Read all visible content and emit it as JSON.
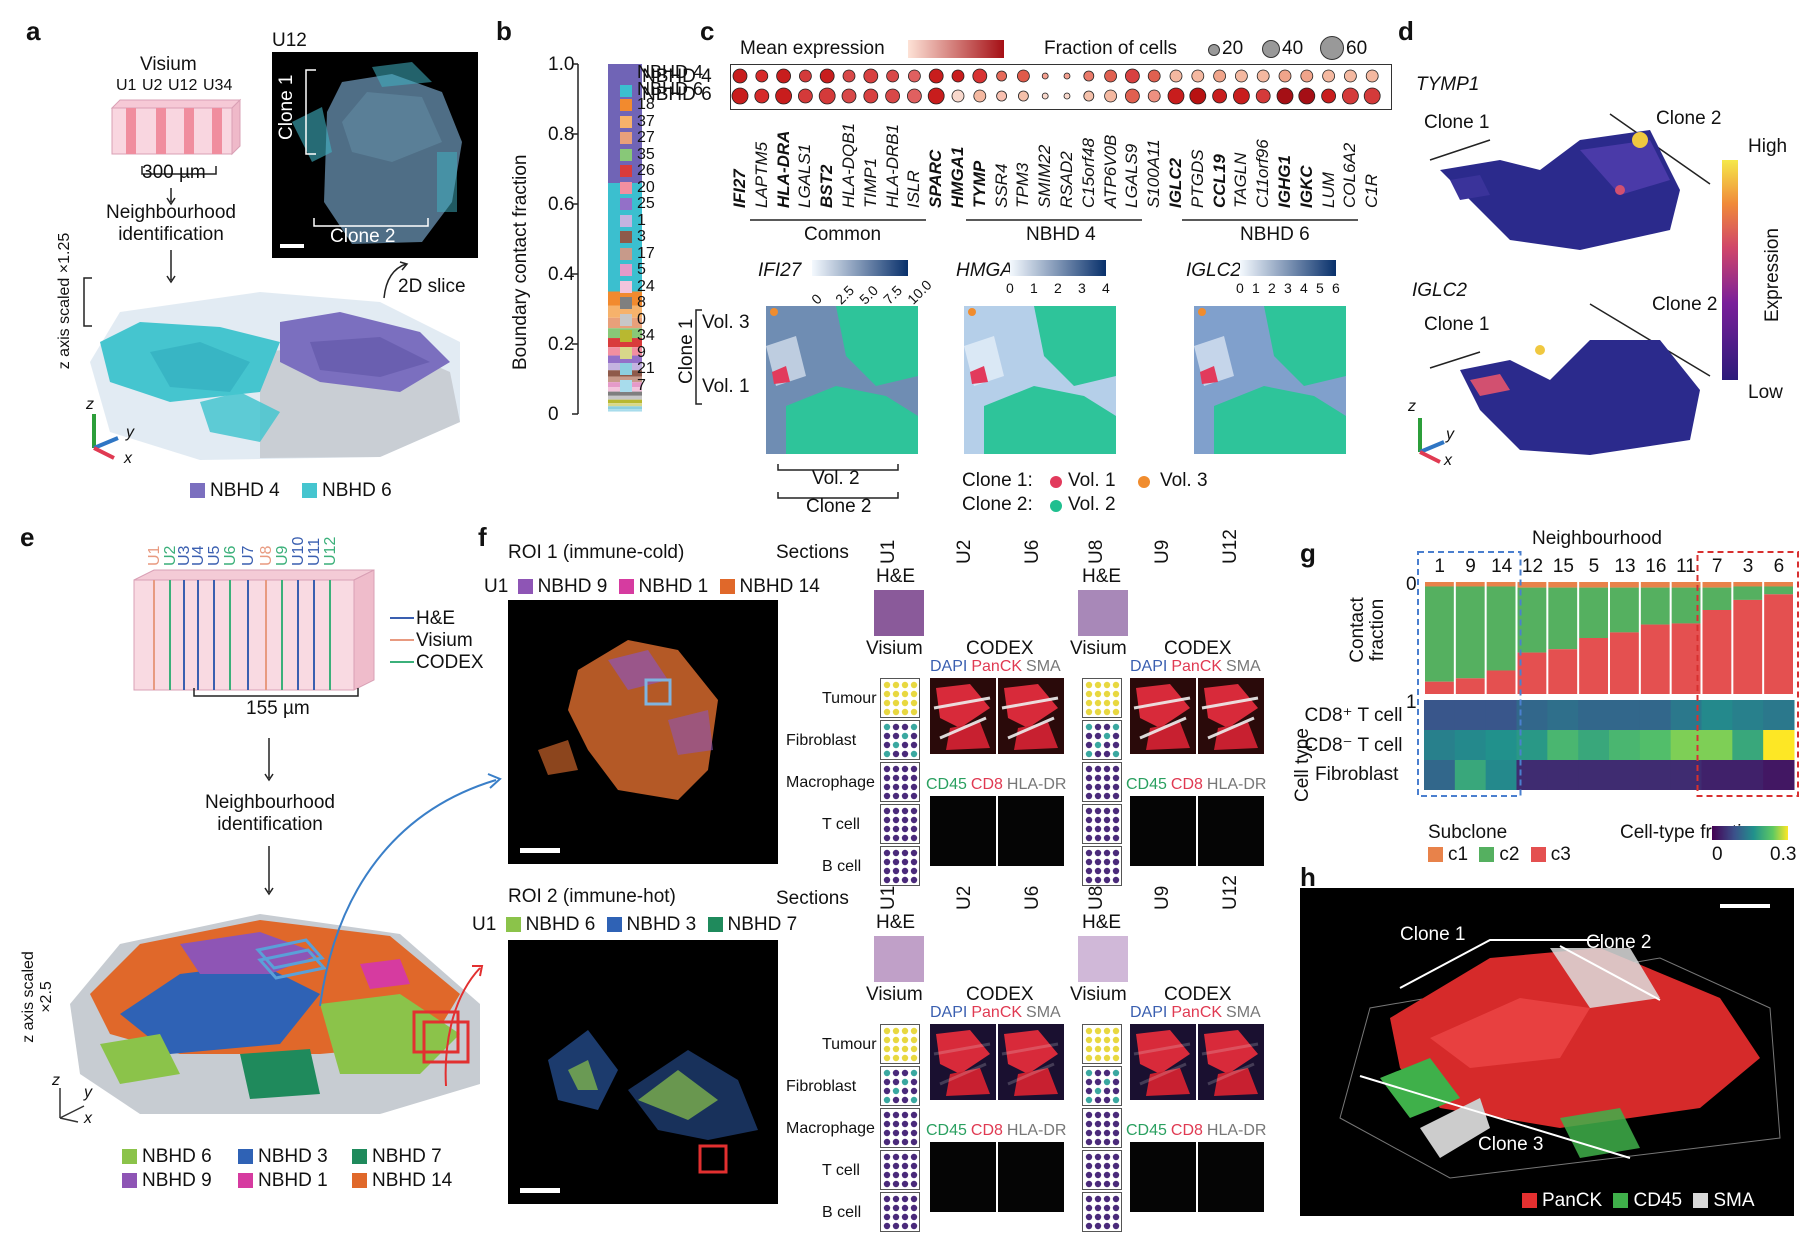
{
  "panels": {
    "a": "a",
    "b": "b",
    "c": "c",
    "d": "d",
    "e": "e",
    "f": "f",
    "g": "g",
    "h": "h"
  },
  "panel_a": {
    "title": "Visium",
    "sections": [
      "U1",
      "U2",
      "U12",
      "U34"
    ],
    "scale": "300 µm",
    "step": "Neighbourhood identification",
    "slice_title": "U12",
    "clone1": "Clone 1",
    "clone2": "Clone 2",
    "slice_arrow": "2D slice",
    "zaxis": "z axis scaled ×1.25",
    "axis_z": "z",
    "axis_y": "y",
    "axis_x": "x",
    "legend": [
      {
        "label": "NBHD 4",
        "color": "#7b6fbf"
      },
      {
        "label": "NBHD 6",
        "color": "#45c5cf"
      }
    ]
  },
  "panel_b": {
    "ylabel": "Boundary contact fraction",
    "yticks": [
      "1.0",
      "0.8",
      "0.6",
      "0.4",
      "0.2",
      "0"
    ],
    "legend": [
      {
        "label": "NBHD 4",
        "color": "#7064b6"
      },
      {
        "label": "NBHD 6",
        "color": "#3bbfcf"
      },
      {
        "label": "18",
        "color": "#f28a2e"
      },
      {
        "label": "37",
        "color": "#f6b26b"
      },
      {
        "label": "27",
        "color": "#e8a07a"
      },
      {
        "label": "35",
        "color": "#88c878"
      },
      {
        "label": "26",
        "color": "#d93b3b"
      },
      {
        "label": "20",
        "color": "#f28fa0"
      },
      {
        "label": "25",
        "color": "#9370c8"
      },
      {
        "label": "1",
        "color": "#c4b3e0"
      },
      {
        "label": "3",
        "color": "#8e5a4a"
      },
      {
        "label": "17",
        "color": "#c79a8a"
      },
      {
        "label": "5",
        "color": "#e59ac9"
      },
      {
        "label": "24",
        "color": "#f2c4dc"
      },
      {
        "label": "8",
        "color": "#7f7f7f"
      },
      {
        "label": "0",
        "color": "#c7c7c7"
      },
      {
        "label": "34",
        "color": "#b8b830"
      },
      {
        "label": "9",
        "color": "#d8d88a"
      },
      {
        "label": "21",
        "color": "#8ccfe0"
      },
      {
        "label": "7",
        "color": "#a8dcec"
      }
    ]
  },
  "panel_c": {
    "mean_expr": "Mean expression",
    "frac_cells": "Fraction of cells",
    "size_legend": [
      "20",
      "40",
      "60"
    ],
    "rows": [
      "NBHD 4",
      "NBHD 6"
    ],
    "groups": [
      {
        "label": "Common",
        "genes": [
          "IFI27",
          "LAPTM5",
          "HLA-DRA",
          "LGALS1",
          "BST2",
          "HLA-DQB1",
          "TIMP1",
          "HLA-DRB1",
          "ISLR",
          "SPARC"
        ]
      },
      {
        "label": "NBHD 4",
        "genes": [
          "HMGA1",
          "TYMP",
          "SSR4",
          "TPM3",
          "SMIM22",
          "RSAD2",
          "C15orf48",
          "ATP6V0B",
          "LGALS9",
          "S100A11"
        ]
      },
      {
        "label": "NBHD 6",
        "genes": [
          "IGLC2",
          "PTGDS",
          "CCL19",
          "TAGLN",
          "C11orf96",
          "IGHG1",
          "IGKC",
          "LUM",
          "COL6A2",
          "C1R"
        ]
      }
    ],
    "bold_genes": [
      "IFI27",
      "HLA-DRA",
      "BST2",
      "SPARC",
      "HMGA1",
      "TYMP",
      "IGLC2",
      "CCL19",
      "IGHG1",
      "IGKC"
    ],
    "maps": [
      {
        "gene": "IFI27",
        "ticks": [
          "0",
          "2.5",
          "5.0",
          "7.5",
          "10.0"
        ]
      },
      {
        "gene": "HMGA1",
        "ticks": [
          "0",
          "1",
          "2",
          "3",
          "4"
        ]
      },
      {
        "gene": "IGLC2",
        "ticks": [
          "0",
          "1",
          "2",
          "3",
          "4",
          "5",
          "6"
        ]
      }
    ],
    "vol3": "Vol. 3",
    "vol1": "Vol. 1",
    "vol2": "Vol. 2",
    "clone1": "Clone 1",
    "clone2": "Clone 2",
    "legend_clone1": "Clone 1:",
    "legend_clone2": "Clone 2:",
    "legend_vol1": "Vol. 1",
    "legend_vol3": "Vol. 3",
    "legend_vol2": "Vol. 2"
  },
  "panel_d": {
    "gene1": "TYMP1",
    "gene2": "IGLC2",
    "clone1": "Clone 1",
    "clone2": "Clone 2",
    "high": "High",
    "low": "Low",
    "expression": "Expression",
    "axis_z": "z",
    "axis_y": "y",
    "axis_x": "x"
  },
  "panel_e": {
    "sections": [
      "U1",
      "U2",
      "U3",
      "U4",
      "U5",
      "U6",
      "U7",
      "U8",
      "U9",
      "U10",
      "U11",
      "U12"
    ],
    "legend_he": "H&E",
    "legend_visium": "Visium",
    "legend_codex": "CODEX",
    "scale": "155 µm",
    "step": "Neighbourhood identification",
    "zaxis": "z axis scaled ×2.5",
    "axis_z": "z",
    "axis_y": "y",
    "axis_x": "x",
    "legend": [
      {
        "label": "NBHD 6",
        "color": "#8bc34a"
      },
      {
        "label": "NBHD 3",
        "color": "#2f62b5"
      },
      {
        "label": "NBHD 7",
        "color": "#1f8a5c"
      },
      {
        "label": "NBHD 9",
        "color": "#8e55b5"
      },
      {
        "label": "NBHD 1",
        "color": "#d63ba0"
      },
      {
        "label": "NBHD 14",
        "color": "#e0682a"
      }
    ]
  },
  "panel_f": {
    "roi1_title": "ROI 1 (immune-cold)",
    "roi1_legend": [
      {
        "label": "NBHD 9",
        "color": "#8e55b5"
      },
      {
        "label": "NBHD 1",
        "color": "#d63ba0"
      },
      {
        "label": "NBHD 14",
        "color": "#e0682a"
      }
    ],
    "roi2_title": "ROI 2 (immune-hot)",
    "roi2_legend": [
      {
        "label": "NBHD 6",
        "color": "#8bc34a"
      },
      {
        "label": "NBHD 3",
        "color": "#2f62b5"
      },
      {
        "label": "NBHD 7",
        "color": "#1f8a5c"
      }
    ],
    "section_prefix": "U1",
    "sections_label": "Sections",
    "section_cols": [
      "U1",
      "U2",
      "U6",
      "U8",
      "U9",
      "U12"
    ],
    "he": "H&E",
    "visium": "Visium",
    "codex": "CODEX",
    "stain1": [
      "DAPI",
      "PanCK",
      "SMA"
    ],
    "stain2": [
      "CD45",
      "CD8",
      "HLA-DR"
    ],
    "rows": [
      "Tumour",
      "Fibroblast",
      "Macrophage",
      "T cell",
      "B cell"
    ]
  },
  "panel_g": {
    "title": "Neighbourhood",
    "columns": [
      "1",
      "9",
      "14",
      "12",
      "15",
      "5",
      "13",
      "16",
      "11",
      "7",
      "3",
      "6"
    ],
    "ylabel_top": "Contact fraction",
    "ytick_top": "0",
    "ytick_bottom": "1",
    "celltype_label": "Cell type",
    "celltypes": [
      "CD8⁺ T cell",
      "CD8⁻ T cell",
      "Fibroblast"
    ],
    "subclone_title": "Subclone",
    "subclones": [
      {
        "label": "c1",
        "color": "#e8824a"
      },
      {
        "label": "c2",
        "color": "#55b060"
      },
      {
        "label": "c3",
        "color": "#e45050"
      }
    ],
    "colorbar_title": "Cell-type fraction",
    "colorbar_min": "0",
    "colorbar_max": "0.3",
    "c1": [
      0.04,
      0.04,
      0.04,
      0.05,
      0.05,
      0.05,
      0.05,
      0.05,
      0.05,
      0.05,
      0.04,
      0.04
    ],
    "c2": [
      0.85,
      0.82,
      0.75,
      0.58,
      0.55,
      0.45,
      0.4,
      0.33,
      0.32,
      0.2,
      0.12,
      0.07
    ],
    "heat": [
      [
        0.08,
        0.08,
        0.08,
        0.1,
        0.11,
        0.1,
        0.1,
        0.1,
        0.12,
        0.14,
        0.13,
        0.12
      ],
      [
        0.13,
        0.14,
        0.15,
        0.16,
        0.2,
        0.18,
        0.2,
        0.21,
        0.24,
        0.24,
        0.18,
        0.3
      ],
      [
        0.1,
        0.18,
        0.14,
        0.04,
        0.04,
        0.04,
        0.04,
        0.04,
        0.04,
        0.03,
        0.03,
        0.02
      ]
    ]
  },
  "panel_h": {
    "clone1": "Clone 1",
    "clone2": "Clone 2",
    "clone3": "Clone 3",
    "legend": [
      {
        "label": "PanCK",
        "color": "#e53030"
      },
      {
        "label": "CD45",
        "color": "#3fb04a"
      },
      {
        "label": "SMA",
        "color": "#d8d8d8"
      }
    ]
  }
}
